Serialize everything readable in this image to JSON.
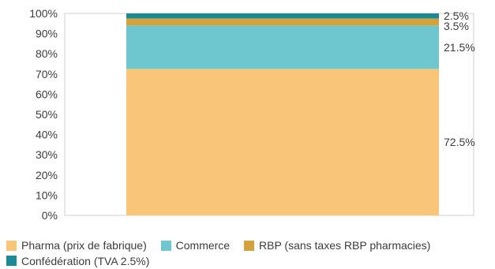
{
  "chart_data": {
    "type": "bar",
    "stacked": true,
    "percent_stacked": true,
    "categories": [
      ""
    ],
    "series": [
      {
        "name": "Pharma (prix de fabrique)",
        "values": [
          72.5
        ],
        "color": "#F9C579",
        "label": "72.5%"
      },
      {
        "name": "Commerce",
        "values": [
          21.5
        ],
        "color": "#6EC6CF",
        "label": "21.5%"
      },
      {
        "name": "RBP (sans taxes RBP pharmacies)",
        "values": [
          3.5
        ],
        "color": "#D4A23A",
        "label": "3.5%"
      },
      {
        "name": "Confédération (TVA 2.5%)",
        "values": [
          2.5
        ],
        "color": "#1A8A98",
        "label": "2.5%"
      }
    ],
    "ylim": [
      0,
      100
    ],
    "yticks": [
      "0%",
      "10%",
      "20%",
      "30%",
      "40%",
      "50%",
      "60%",
      "70%",
      "80%",
      "90%",
      "100%"
    ],
    "grid": false,
    "legend_position": "bottom"
  }
}
